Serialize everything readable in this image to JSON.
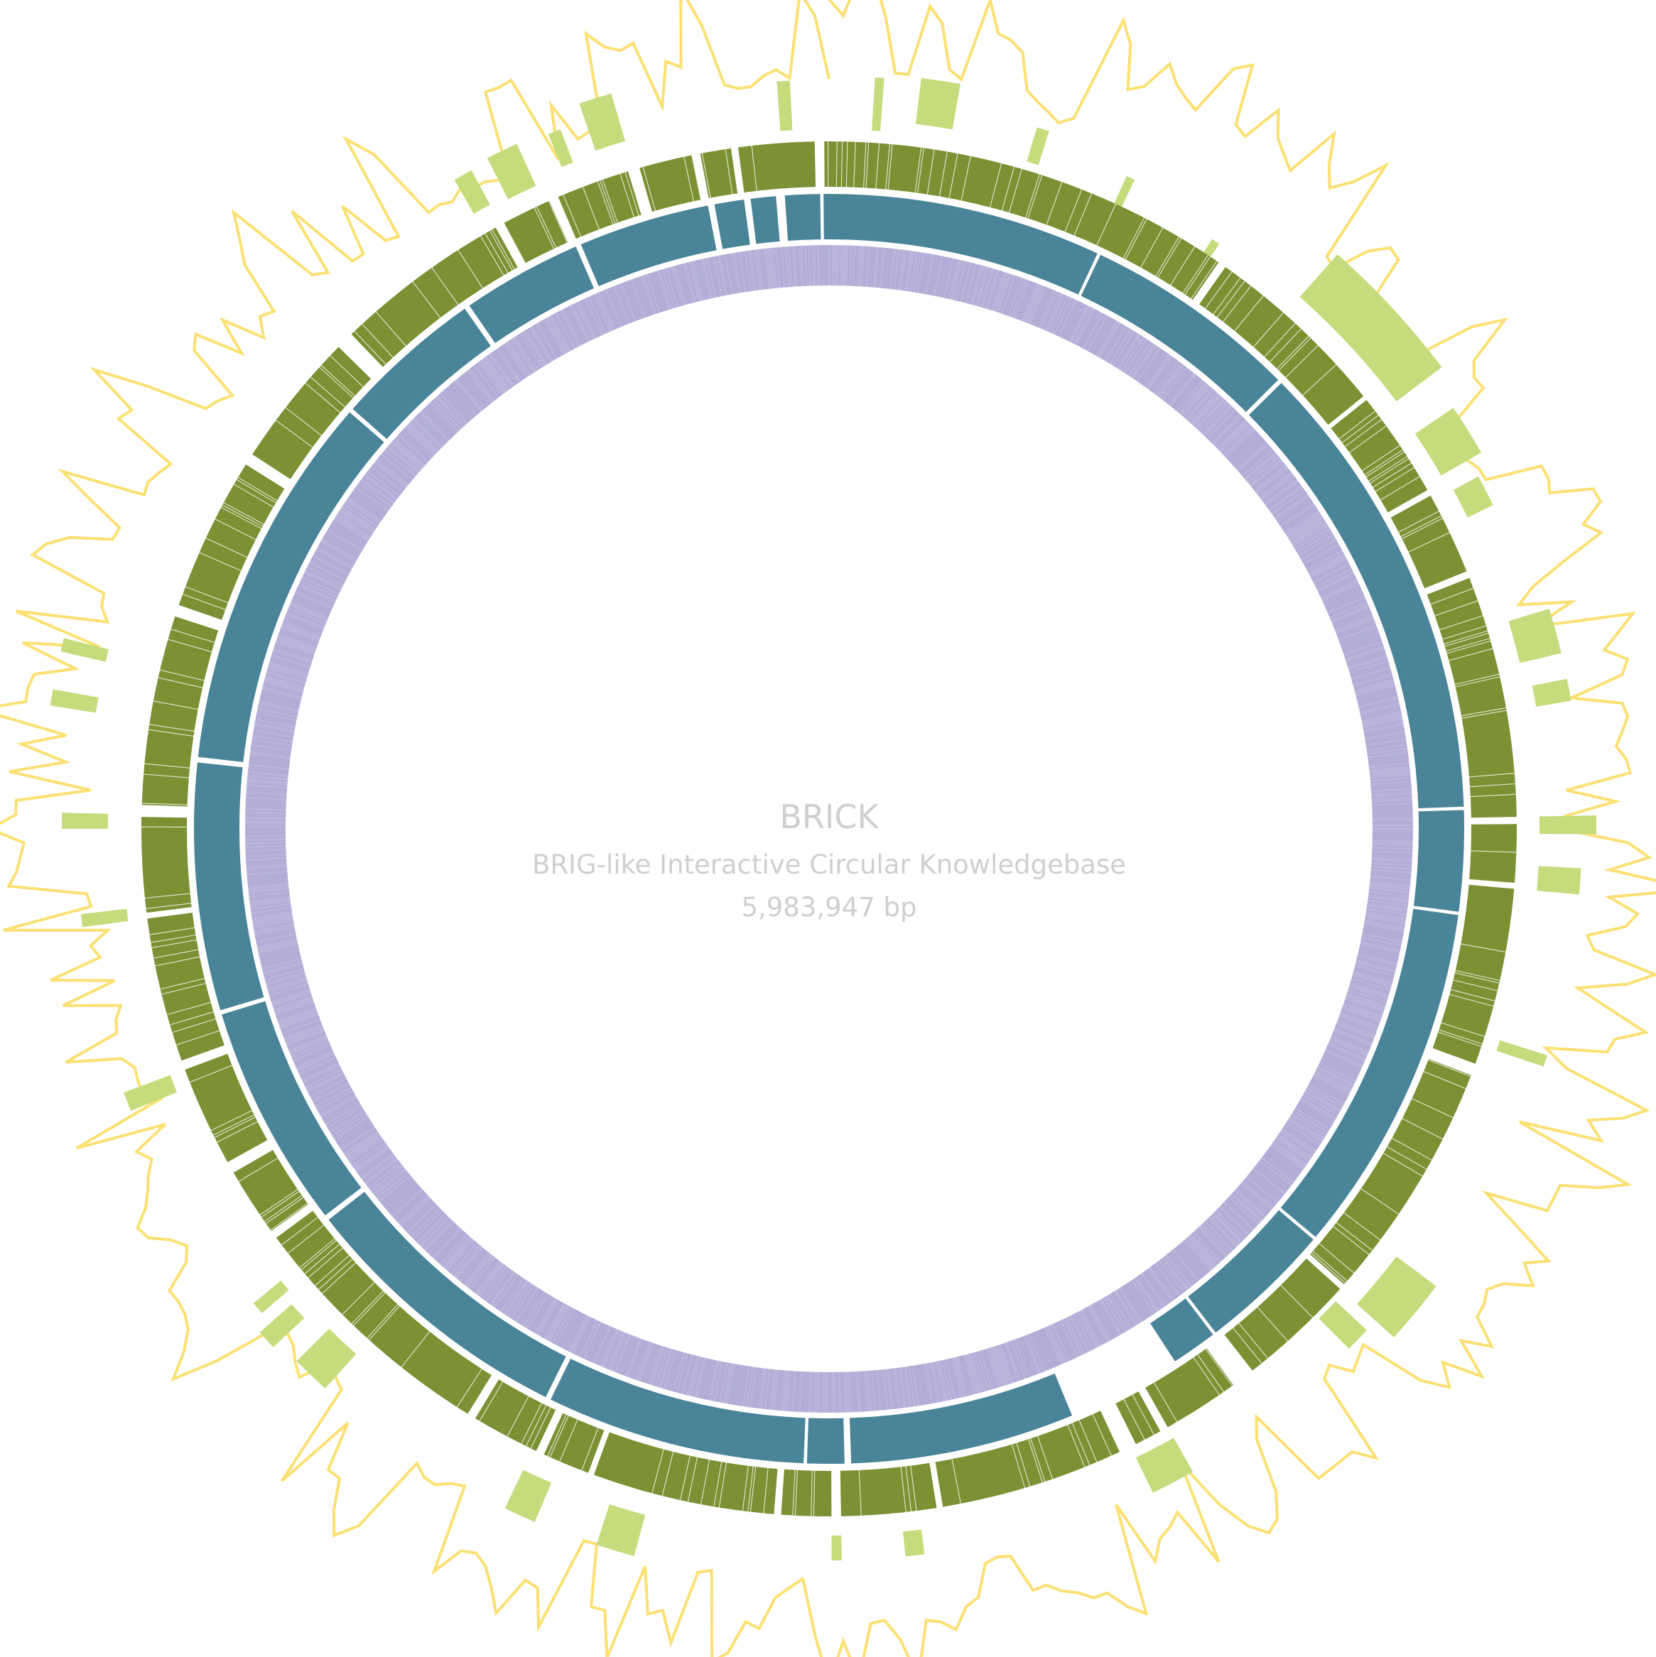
{
  "title": "BRICK",
  "subtitle": "BRIG-like Interactive Circular Knowledgebase",
  "genome_length_label": "5,983,947 bp",
  "genome_length_bp": 5983947,
  "colors": {
    "gc_skew_line": "#fce072",
    "region_blocks": "#c5dc7c",
    "cds_track": "#7b9133",
    "contig_track": "#4a8499",
    "gc_content_track": "#b9b5da",
    "center_text": "#cfcfcf"
  },
  "rings": [
    {
      "name": "GC plot",
      "type": "line"
    },
    {
      "name": "Regions",
      "type": "blocks"
    },
    {
      "name": "CDS",
      "type": "dense-ticks"
    },
    {
      "name": "Contigs",
      "type": "segments"
    },
    {
      "name": "GC content",
      "type": "dense-ticks"
    }
  ]
}
